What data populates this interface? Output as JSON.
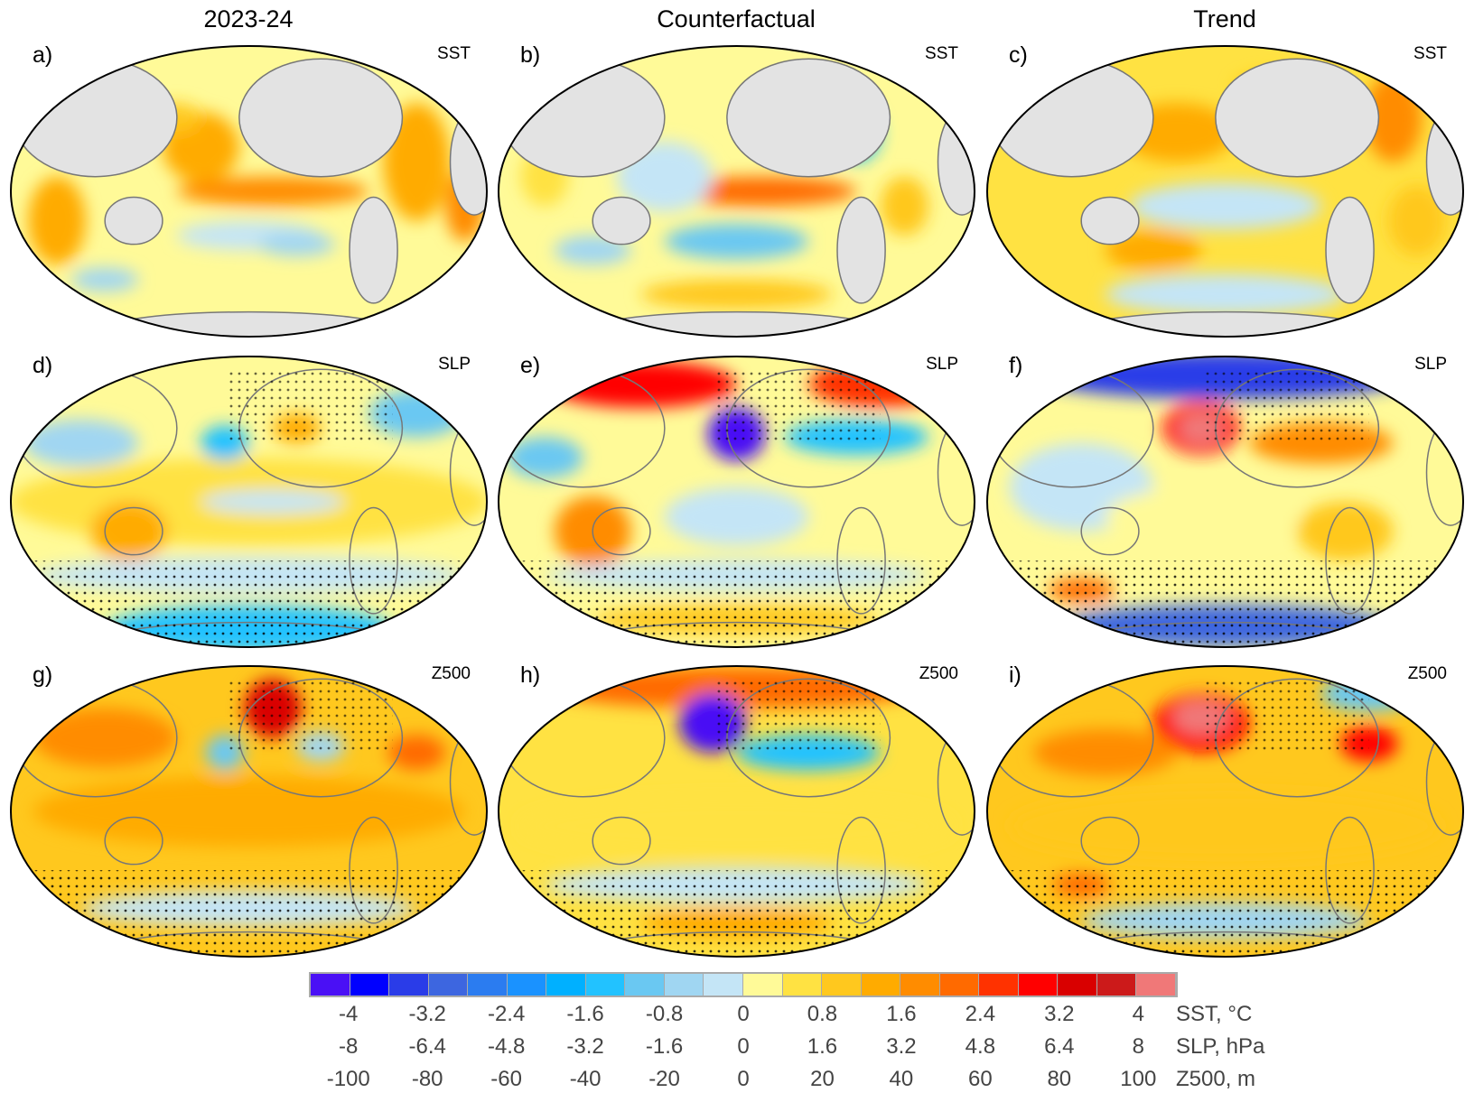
{
  "column_titles": [
    "2023-24",
    "Counterfactual",
    "Trend"
  ],
  "panels": [
    {
      "label": "a)",
      "variable": "SST"
    },
    {
      "label": "b)",
      "variable": "SST"
    },
    {
      "label": "c)",
      "variable": "SST"
    },
    {
      "label": "d)",
      "variable": "SLP"
    },
    {
      "label": "e)",
      "variable": "SLP"
    },
    {
      "label": "f)",
      "variable": "SLP"
    },
    {
      "label": "g)",
      "variable": "Z500"
    },
    {
      "label": "h)",
      "variable": "Z500"
    },
    {
      "label": "i)",
      "variable": "Z500"
    }
  ],
  "colorbar": {
    "colors": [
      "#4a10f5",
      "#0000ff",
      "#2a3ce8",
      "#3d66e0",
      "#2b7cf0",
      "#1a92ff",
      "#00b0ff",
      "#22c2ff",
      "#6ac8f2",
      "#a0d6f2",
      "#c4e5f6",
      "#fffa98",
      "#ffe242",
      "#ffc81e",
      "#ffab00",
      "#ff8c00",
      "#ff6a00",
      "#ff3200",
      "#ff0000",
      "#d90000",
      "#cc1a1a",
      "#f07878"
    ],
    "scales": [
      {
        "unit": "SST, °C",
        "ticks": [
          "-4",
          "-3.2",
          "-2.4",
          "-1.6",
          "-0.8",
          "0",
          "0.8",
          "1.6",
          "2.4",
          "3.2",
          "4"
        ]
      },
      {
        "unit": "SLP, hPa",
        "ticks": [
          "-8",
          "-6.4",
          "-4.8",
          "-3.2",
          "-1.6",
          "0",
          "1.6",
          "3.2",
          "4.8",
          "6.4",
          "8"
        ]
      },
      {
        "unit": "Z500, m",
        "ticks": [
          "-100",
          "-80",
          "-60",
          "-40",
          "-20",
          "0",
          "20",
          "40",
          "60",
          "80",
          "100"
        ]
      }
    ]
  },
  "land_color": "#e3e3e3",
  "coastline_color": "#777777"
}
